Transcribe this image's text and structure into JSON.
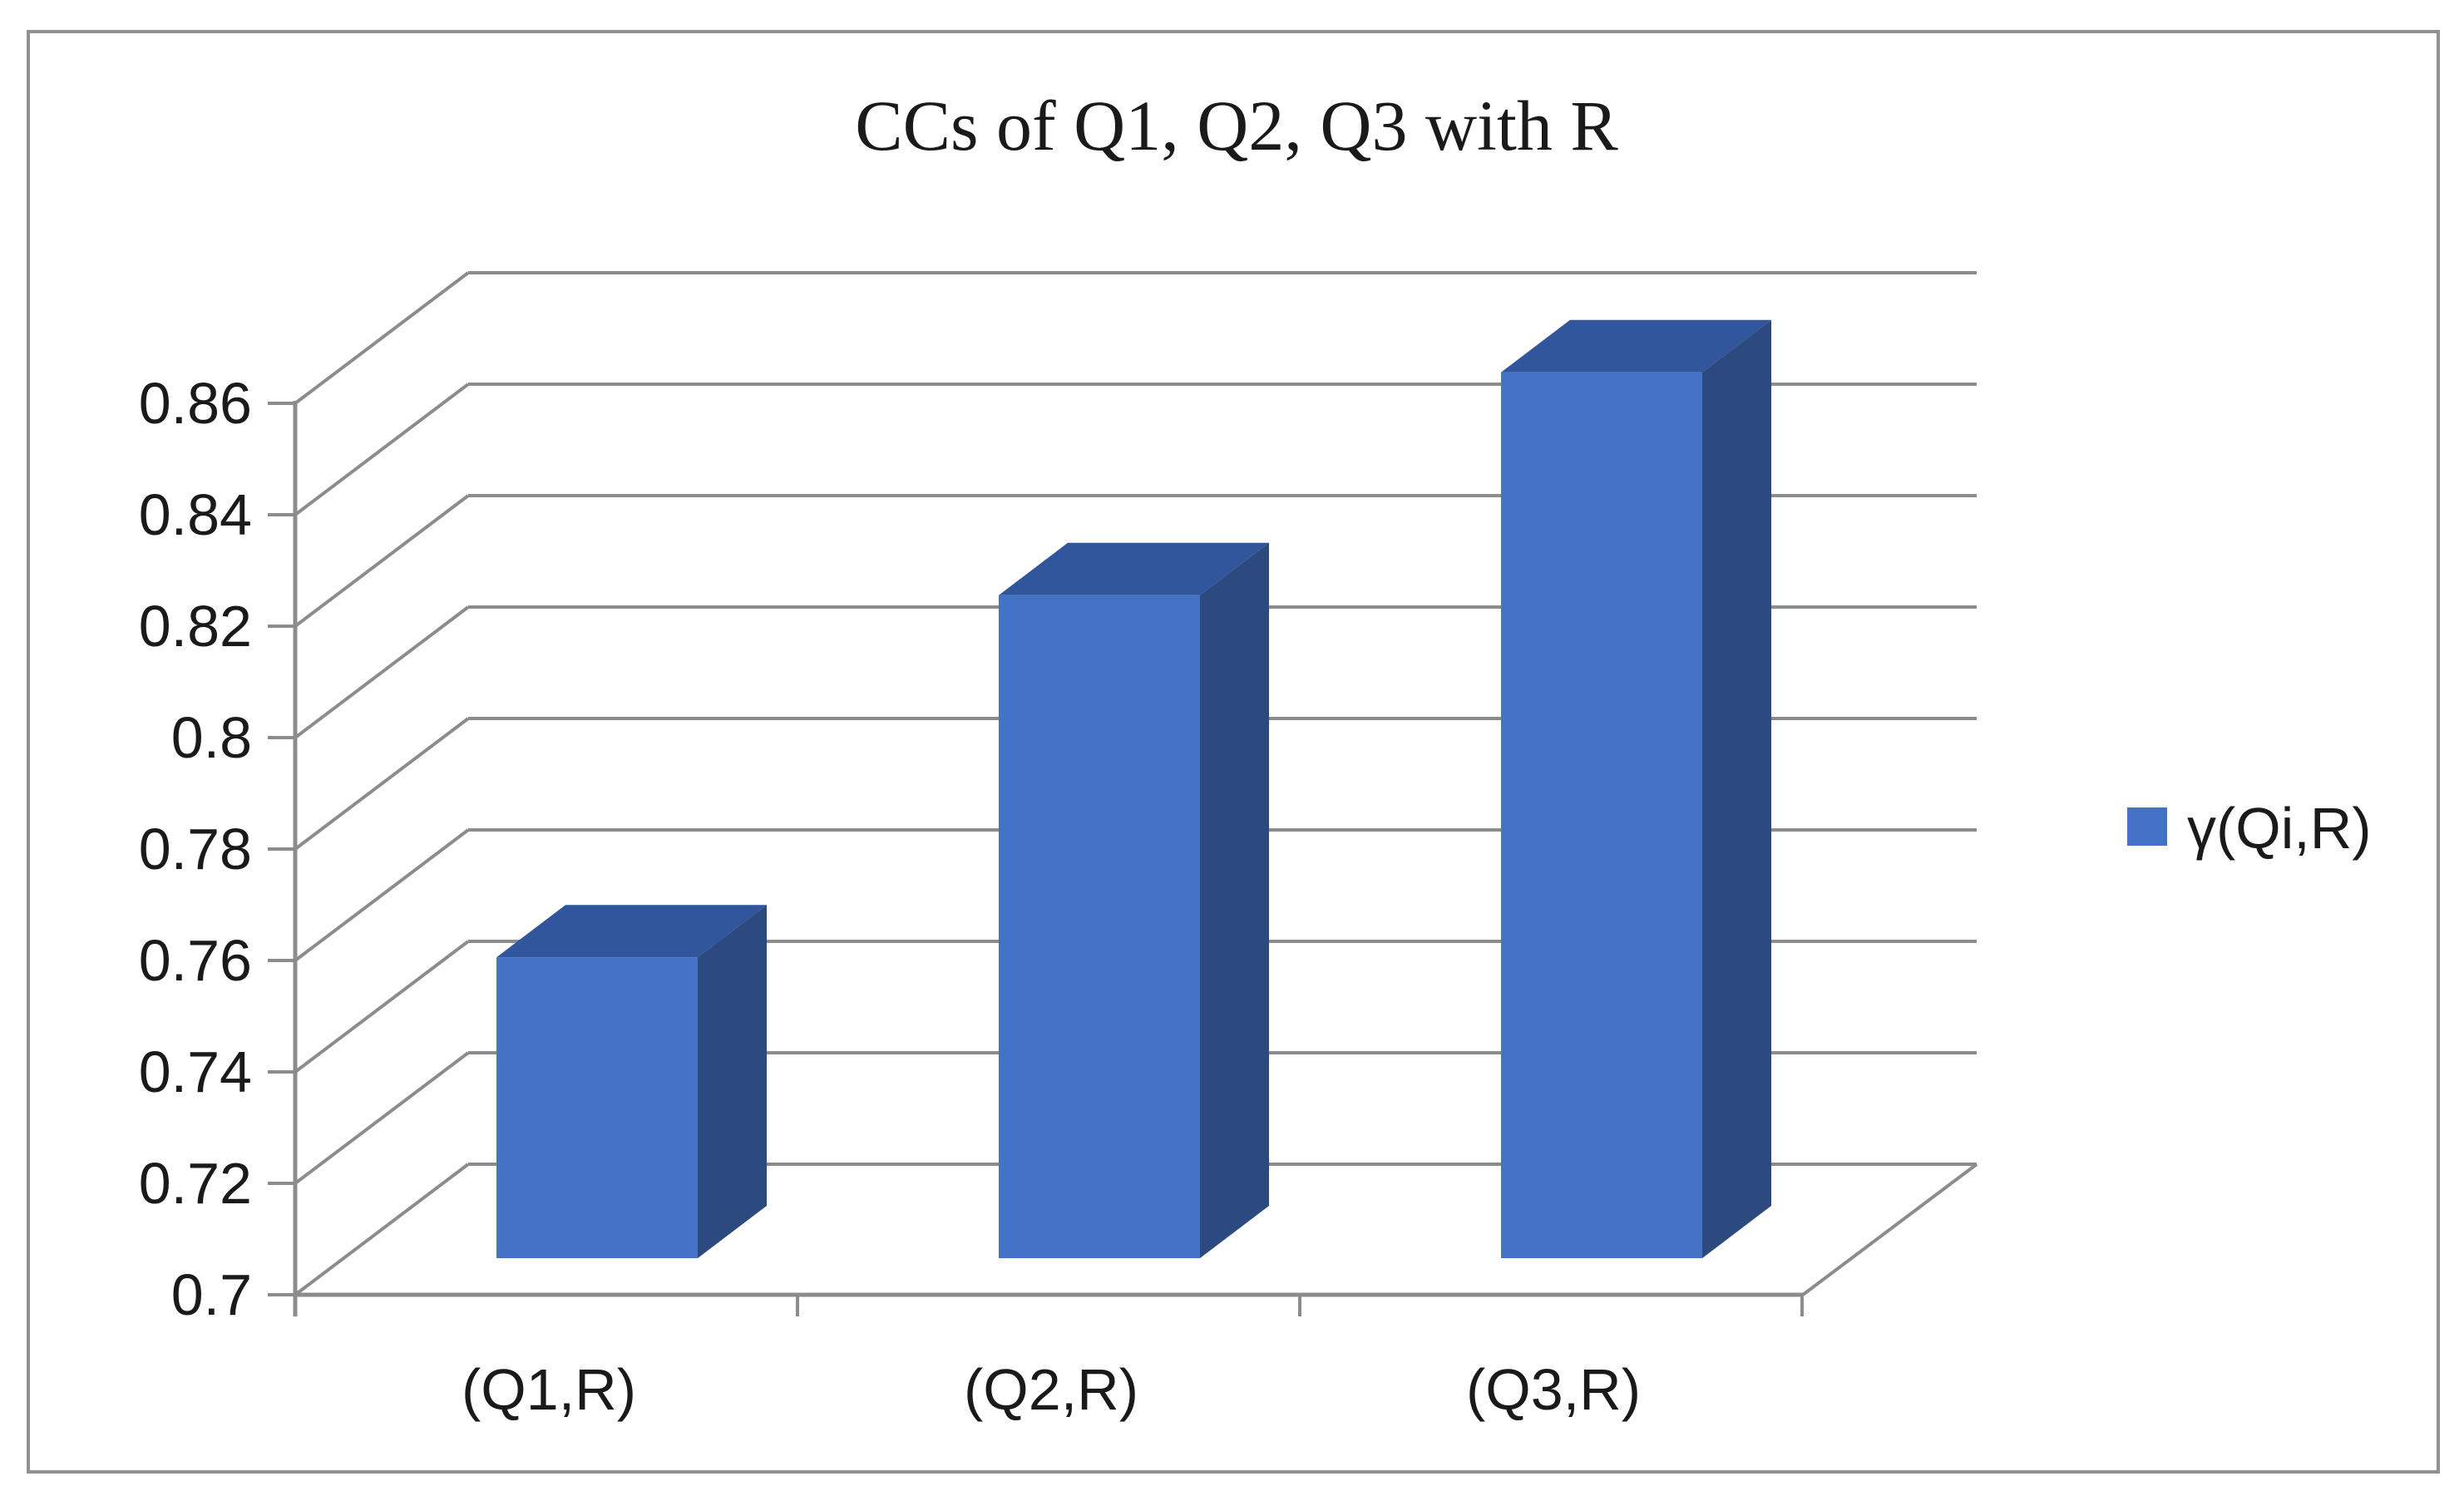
{
  "chart_data": {
    "type": "bar",
    "variant": "3d-column",
    "title": "CCs of Q1, Q2, Q3 with R",
    "categories": [
      "(Q1,R)",
      "(Q2,R)",
      "(Q3,R)"
    ],
    "series": [
      {
        "name": "γ(Qi,R)",
        "values": [
          0.754,
          0.819,
          0.859
        ]
      }
    ],
    "xlabel": "",
    "ylabel": "",
    "ylim": [
      0.7,
      0.86
    ],
    "ytick_interval": 0.02,
    "yticks": [
      {
        "value": 0.7,
        "label": "0.7"
      },
      {
        "value": 0.72,
        "label": "0.72"
      },
      {
        "value": 0.74,
        "label": "0.74"
      },
      {
        "value": 0.76,
        "label": "0.76"
      },
      {
        "value": 0.78,
        "label": "0.78"
      },
      {
        "value": 0.8,
        "label": "0.8"
      },
      {
        "value": 0.82,
        "label": "0.82"
      },
      {
        "value": 0.84,
        "label": "0.84"
      },
      {
        "value": 0.86,
        "label": "0.86"
      }
    ],
    "grid": true,
    "legend_position": "right",
    "colors": {
      "background": "#ffffff",
      "text": "#1a1a1a",
      "gridline": "#8c8c8c",
      "border": "#8f9092",
      "bar_front": "#4472C4",
      "bar_top": "#31569B",
      "bar_side": "#2C4A7E"
    }
  }
}
